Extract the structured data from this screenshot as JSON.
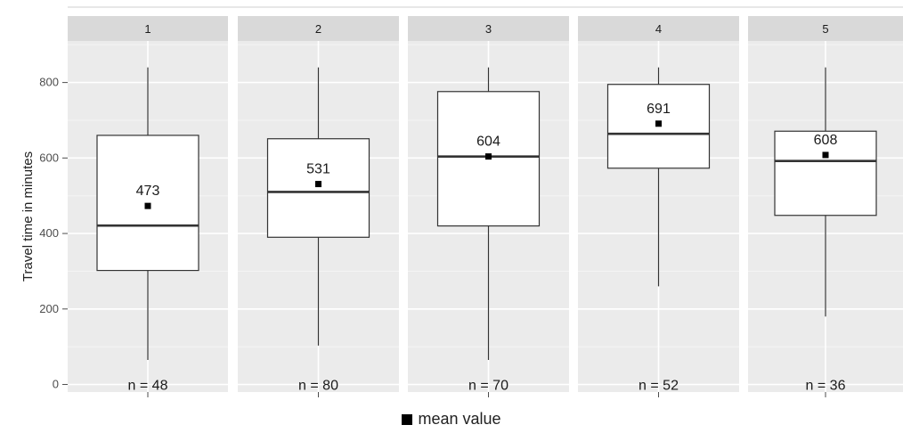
{
  "chart_data": {
    "type": "boxplot",
    "facets": [
      "1",
      "2",
      "3",
      "4",
      "5"
    ],
    "ylabel": "Travel time in minutes",
    "ylim": [
      -20,
      910
    ],
    "yticks": [
      0,
      200,
      400,
      600,
      800
    ],
    "grid": true,
    "series": [
      {
        "facet": "1",
        "min": 65,
        "q1": 302,
        "median": 421,
        "q3": 660,
        "max": 840,
        "mean": 473,
        "mean_label": "473",
        "n_label": "n = 48"
      },
      {
        "facet": "2",
        "min": 103,
        "q1": 390,
        "median": 510,
        "q3": 651,
        "max": 840,
        "mean": 531,
        "mean_label": "531",
        "n_label": "n = 80"
      },
      {
        "facet": "3",
        "min": 65,
        "q1": 420,
        "median": 604,
        "q3": 776,
        "max": 840,
        "mean": 604,
        "mean_label": "604",
        "n_label": "n = 70"
      },
      {
        "facet": "4",
        "min": 260,
        "q1": 573,
        "median": 664,
        "q3": 795,
        "max": 840,
        "mean": 691,
        "mean_label": "691",
        "n_label": "n = 52"
      },
      {
        "facet": "5",
        "min": 180,
        "q1": 448,
        "median": 592,
        "q3": 671,
        "max": 840,
        "mean": 608,
        "mean_label": "608",
        "n_label": "n = 36"
      }
    ],
    "legend": {
      "marker": "square",
      "label": "mean value",
      "position": "bottom"
    }
  }
}
